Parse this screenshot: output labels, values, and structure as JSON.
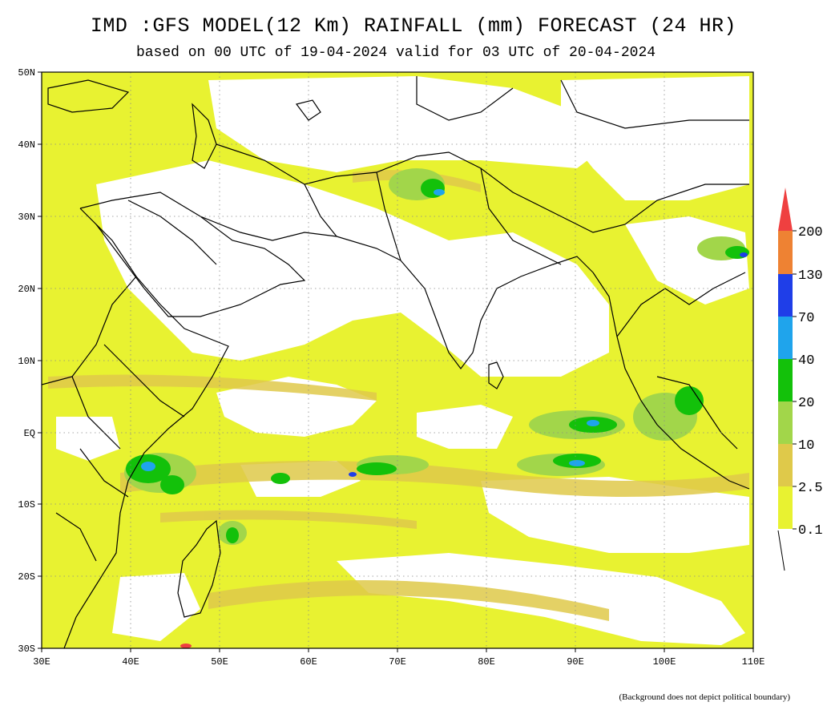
{
  "title": "IMD :GFS MODEL(12 Km) RAINFALL (mm) FORECAST (24 HR)",
  "subtitle": "based on 00 UTC of 19-04-2024 valid for 03 UTC of 20-04-2024",
  "footnote": "(Background does not depict political boundary)",
  "map": {
    "lon_range": [
      30,
      110
    ],
    "lat_range": [
      -30,
      50
    ],
    "lon_ticks": [
      "30E",
      "40E",
      "50E",
      "60E",
      "70E",
      "80E",
      "90E",
      "100E",
      "110E"
    ],
    "lat_ticks": [
      "50N",
      "40N",
      "30N",
      "20N",
      "10N",
      "EQ",
      "10S",
      "20S",
      "30S"
    ],
    "grid": "dotted"
  },
  "legend": {
    "levels": [
      "0.1",
      "2.5",
      "10",
      "20",
      "40",
      "70",
      "130",
      "200"
    ],
    "colors": [
      "#e8f231",
      "#dfc94a",
      "#a2d64a",
      "#13c10a",
      "#1fa4ec",
      "#1f3ee8",
      "#ee8233",
      "#ef4040"
    ]
  }
}
